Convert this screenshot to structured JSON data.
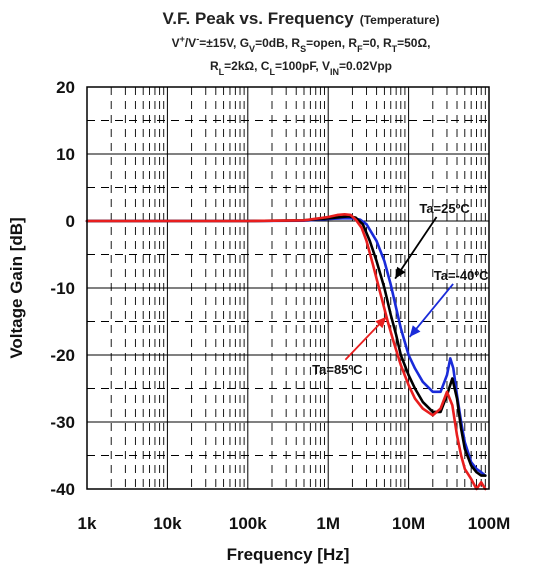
{
  "chart_data": {
    "type": "line",
    "title": "V.F. Peak vs. Frequency",
    "title_suffix": "(Temperature)",
    "conditions_line1": [
      {
        "t": "V"
      },
      {
        "t": "+",
        "sup": true
      },
      {
        "t": "/V"
      },
      {
        "t": "-",
        "sup": true
      },
      {
        "t": "=±15V, G"
      },
      {
        "t": "V",
        "sub": true
      },
      {
        "t": "=0dB, R"
      },
      {
        "t": "S",
        "sub": true
      },
      {
        "t": "=open, R"
      },
      {
        "t": "F",
        "sub": true
      },
      {
        "t": "=0, R"
      },
      {
        "t": "T",
        "sub": true
      },
      {
        "t": "=50Ω,"
      }
    ],
    "conditions_line2": [
      {
        "t": "R"
      },
      {
        "t": "L",
        "sub": true
      },
      {
        "t": "=2kΩ, C"
      },
      {
        "t": "L",
        "sub": true
      },
      {
        "t": "=100pF, V"
      },
      {
        "t": "IN",
        "sub": true
      },
      {
        "t": "=0.02Vpp"
      }
    ],
    "xlabel": "Frequency [Hz]",
    "ylabel": "Voltage Gain [dB]",
    "x_scale": "log",
    "xlim": [
      1000,
      100000000
    ],
    "ylim": [
      -40,
      20
    ],
    "x_ticks": [
      {
        "value": 1000,
        "label": "1k"
      },
      {
        "value": 10000,
        "label": "10k"
      },
      {
        "value": 100000,
        "label": "100k"
      },
      {
        "value": 1000000,
        "label": "1M"
      },
      {
        "value": 10000000,
        "label": "10M"
      },
      {
        "value": 100000000,
        "label": "100M"
      }
    ],
    "y_ticks": [
      20,
      10,
      0,
      -10,
      -20,
      -30,
      -40
    ],
    "grid": true,
    "series": [
      {
        "name": "Ta=-40ºC",
        "color": "#1a2bd9",
        "x": [
          1000,
          100000,
          500000,
          1000000,
          1500000,
          2000000,
          2500000,
          3000000,
          4000000,
          5000000,
          6000000,
          7000000,
          8000000,
          10000000,
          12000000,
          15000000,
          20000000,
          25000000,
          30000000,
          33000000,
          36000000,
          40000000,
          45000000,
          50000000,
          60000000,
          70000000,
          80000000,
          90000000
        ],
        "y": [
          0,
          0,
          0.05,
          0.3,
          0.4,
          0.4,
          0.2,
          -0.5,
          -3,
          -6,
          -9.5,
          -13,
          -16,
          -20,
          -22,
          -24,
          -25.5,
          -25.5,
          -23,
          -20.5,
          -22,
          -26,
          -30,
          -33,
          -36,
          -37,
          -37.5,
          -38
        ]
      },
      {
        "name": "Ta=25ºC",
        "color": "#000000",
        "x": [
          1000,
          100000,
          500000,
          1000000,
          1500000,
          1800000,
          2200000,
          2700000,
          3300000,
          4000000,
          5000000,
          6000000,
          7000000,
          8000000,
          10000000,
          12000000,
          15000000,
          20000000,
          25000000,
          30000000,
          35000000,
          40000000,
          45000000,
          50000000,
          60000000,
          70000000,
          80000000,
          90000000
        ],
        "y": [
          0,
          0,
          0.1,
          0.4,
          0.6,
          0.7,
          0.5,
          -0.5,
          -3,
          -6,
          -10,
          -14,
          -17,
          -20,
          -23,
          -25,
          -27,
          -28.5,
          -28.5,
          -26,
          -23.5,
          -26.5,
          -31,
          -34,
          -36.5,
          -37.5,
          -38,
          -38
        ]
      },
      {
        "name": "Ta=85ºC",
        "color": "#e81e1e",
        "x": [
          1000,
          100000,
          500000,
          1000000,
          1300000,
          1600000,
          1900000,
          2200000,
          2600000,
          3000000,
          3600000,
          4500000,
          5500000,
          6500000,
          8000000,
          10000000,
          12000000,
          15000000,
          20000000,
          25000000,
          30000000,
          35000000,
          40000000,
          45000000,
          50000000,
          60000000,
          70000000,
          80000000,
          90000000
        ],
        "y": [
          0,
          0,
          0.1,
          0.6,
          0.9,
          1,
          0.9,
          0.2,
          -1,
          -3,
          -6.5,
          -11,
          -15,
          -18,
          -21.5,
          -24.5,
          -26.5,
          -28,
          -29,
          -28,
          -25.5,
          -27.5,
          -32,
          -35,
          -37,
          -38.5,
          -40,
          -39,
          -40
        ]
      }
    ],
    "annotations": [
      {
        "text": "Ta=25ºC",
        "series": "Ta=25ºC",
        "color": "#000000",
        "label_x": 28000000,
        "label_y": 1.2,
        "arrow_x": 6800000,
        "arrow_y": -8.6
      },
      {
        "text": "Ta=-40ºC",
        "series": "Ta=-40ºC",
        "color": "#1a2bd9",
        "label_x": 45000000,
        "label_y": -8.8,
        "arrow_x": 10300000,
        "arrow_y": -17.3
      },
      {
        "text": "Ta=85ºC",
        "series": "Ta=85ºC",
        "color": "#e81e1e",
        "label_x": 1300000,
        "label_y": -22.8,
        "arrow_x": 5300000,
        "arrow_y": -14.3
      }
    ]
  }
}
